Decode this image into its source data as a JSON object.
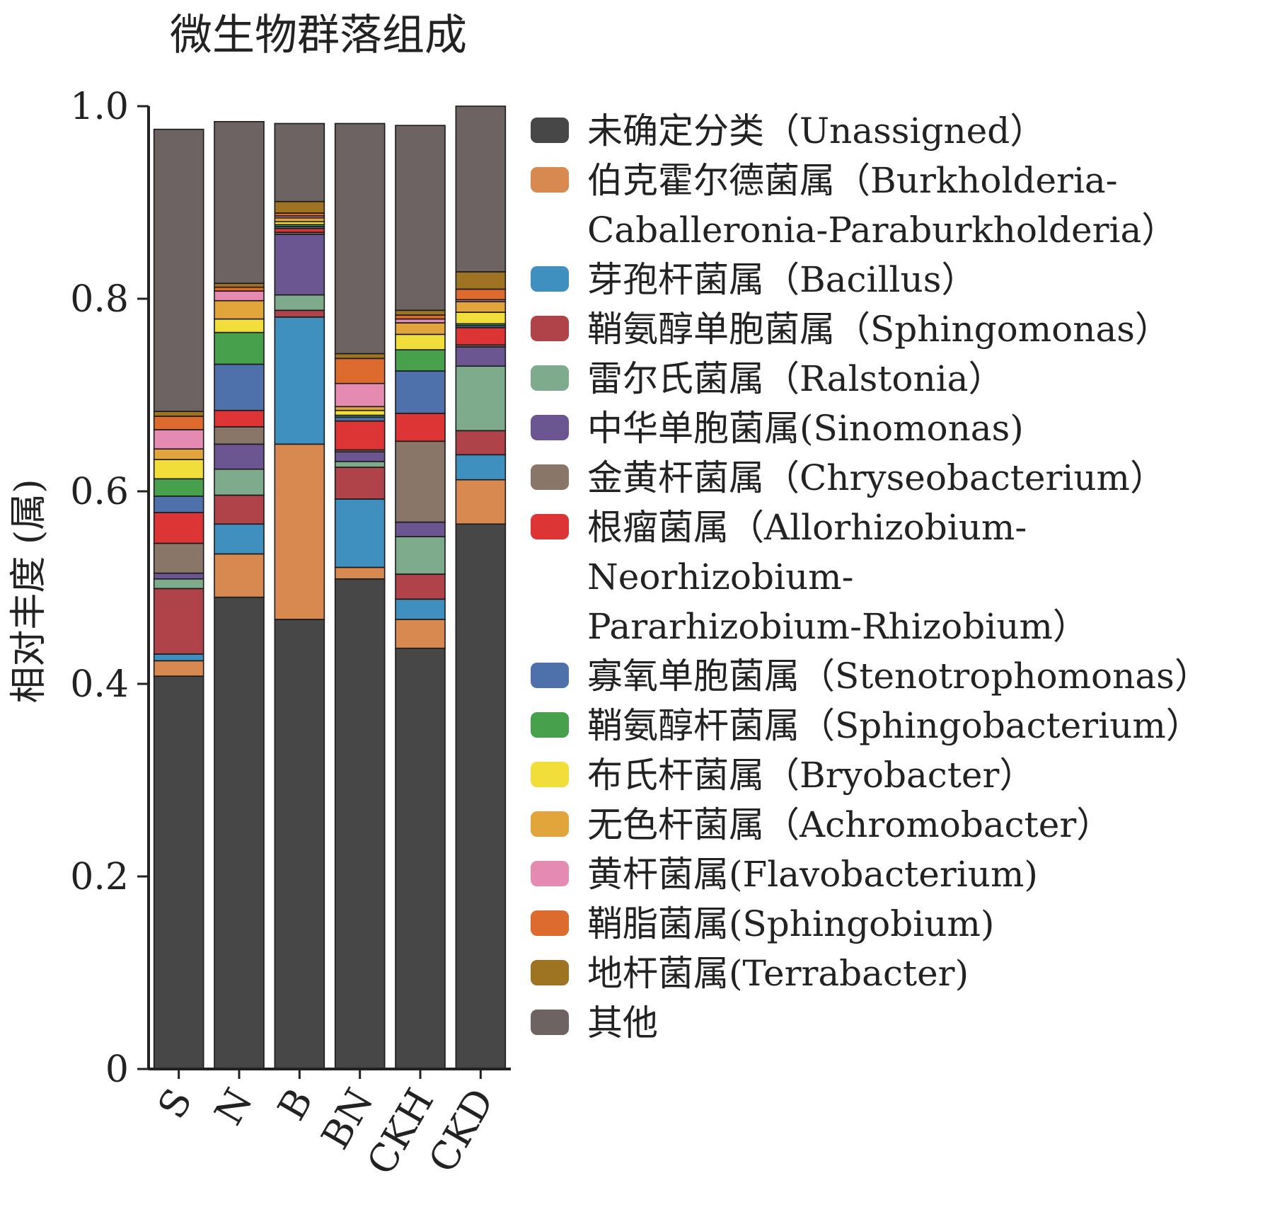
{
  "chart_data": {
    "type": "bar",
    "stacked": true,
    "title": "微生物群落组成",
    "ylabel": "相对丰度 (属)",
    "xlabel": "",
    "ylim": [
      0,
      1.0
    ],
    "yticks": [
      "0",
      "0.2",
      "0.4",
      "0.6",
      "0.8",
      "1.0"
    ],
    "categories": [
      "S",
      "N",
      "B",
      "BN",
      "CKH",
      "CKD"
    ],
    "series": [
      {
        "name": "未确定分类（Unassigned）",
        "color": "#474747",
        "values": [
          0.408,
          0.49,
          0.467,
          0.509,
          0.437,
          0.566
        ]
      },
      {
        "name": "伯克霍尔德菌属（Burkholderia-Caballeronia-Paraburkholderia）",
        "color": "#d8894f",
        "values": [
          0.016,
          0.045,
          0.182,
          0.012,
          0.03,
          0.046
        ]
      },
      {
        "name": "芽孢杆菌属（Bacillus）",
        "color": "#3f8fbf",
        "values": [
          0.007,
          0.031,
          0.132,
          0.071,
          0.021,
          0.026
        ]
      },
      {
        "name": "鞘氨醇单胞菌属（Sphingomonas）",
        "color": "#b0424a",
        "values": [
          0.068,
          0.03,
          0.007,
          0.033,
          0.026,
          0.025
        ]
      },
      {
        "name": "雷尔氏菌属（Ralstonia）",
        "color": "#7dab8c",
        "values": [
          0.01,
          0.027,
          0.016,
          0.006,
          0.039,
          0.067
        ]
      },
      {
        "name": "中华单胞菌属(Sinomonas)",
        "color": "#6c5691",
        "values": [
          0.006,
          0.026,
          0.063,
          0.01,
          0.015,
          0.02
        ]
      },
      {
        "name": "金黄杆菌属（Chryseobacterium）",
        "color": "#8a7668",
        "values": [
          0.031,
          0.018,
          0.002,
          0.002,
          0.084,
          0.002
        ]
      },
      {
        "name": "根瘤菌属（Allorhizobium-Neorhizobium-Pararhizobium-Rhizobium）",
        "color": "#dd3436",
        "values": [
          0.032,
          0.017,
          0.004,
          0.03,
          0.029,
          0.018
        ]
      },
      {
        "name": "寡氧单胞菌属（Stenotrophomonas）",
        "color": "#4f71ab",
        "values": [
          0.017,
          0.048,
          0.002,
          0.004,
          0.044,
          0.002
        ]
      },
      {
        "name": "鞘氨醇杆菌属（Sphingobacterium）",
        "color": "#47a04c",
        "values": [
          0.018,
          0.033,
          0.002,
          0.002,
          0.022,
          0.002
        ]
      },
      {
        "name": "布氏杆菌属（Bryobacter）",
        "color": "#f1de3a",
        "values": [
          0.02,
          0.014,
          0.003,
          0.005,
          0.016,
          0.012
        ]
      },
      {
        "name": "无色杆菌属（Achromobacter）",
        "color": "#e2a53b",
        "values": [
          0.011,
          0.019,
          0.004,
          0.004,
          0.012,
          0.011
        ]
      },
      {
        "name": "黄杆菌属(Flavobacterium)",
        "color": "#e58bb1",
        "values": [
          0.02,
          0.01,
          0.002,
          0.024,
          0.004,
          0.002
        ]
      },
      {
        "name": "鞘脂菌属(Sphingobium)",
        "color": "#dd6b2d",
        "values": [
          0.014,
          0.004,
          0.003,
          0.026,
          0.004,
          0.011
        ]
      },
      {
        "name": "地杆菌属(Terrabacter)",
        "color": "#9e7321",
        "values": [
          0.005,
          0.004,
          0.012,
          0.005,
          0.005,
          0.018
        ]
      },
      {
        "name": "其他",
        "color": "#6d6363",
        "values": [
          0.293,
          0.168,
          0.081,
          0.239,
          0.192,
          0.172
        ]
      }
    ]
  },
  "legend": {
    "items": [
      {
        "lines": [
          "未确定分类（Unassigned）"
        ]
      },
      {
        "lines": [
          "伯克霍尔德菌属（Burkholderia-",
          "Caballeronia-Paraburkholderia）"
        ]
      },
      {
        "lines": [
          "芽孢杆菌属（Bacillus）"
        ]
      },
      {
        "lines": [
          "鞘氨醇单胞菌属（Sphingomonas）"
        ]
      },
      {
        "lines": [
          "雷尔氏菌属（Ralstonia）"
        ]
      },
      {
        "lines": [
          "中华单胞菌属(Sinomonas)"
        ]
      },
      {
        "lines": [
          "金黄杆菌属（Chryseobacterium）"
        ]
      },
      {
        "lines": [
          "根瘤菌属（Allorhizobium-Neorhizobium-",
          "Pararhizobium-Rhizobium）"
        ]
      },
      {
        "lines": [
          "寡氧单胞菌属（Stenotrophomonas）"
        ]
      },
      {
        "lines": [
          "鞘氨醇杆菌属（Sphingobacterium）"
        ]
      },
      {
        "lines": [
          "布氏杆菌属（Bryobacter）"
        ]
      },
      {
        "lines": [
          "无色杆菌属（Achromobacter）"
        ]
      },
      {
        "lines": [
          "黄杆菌属(Flavobacterium)"
        ]
      },
      {
        "lines": [
          "鞘脂菌属(Sphingobium)"
        ]
      },
      {
        "lines": [
          "地杆菌属(Terrabacter)"
        ]
      },
      {
        "lines": [
          "其他"
        ]
      }
    ]
  }
}
